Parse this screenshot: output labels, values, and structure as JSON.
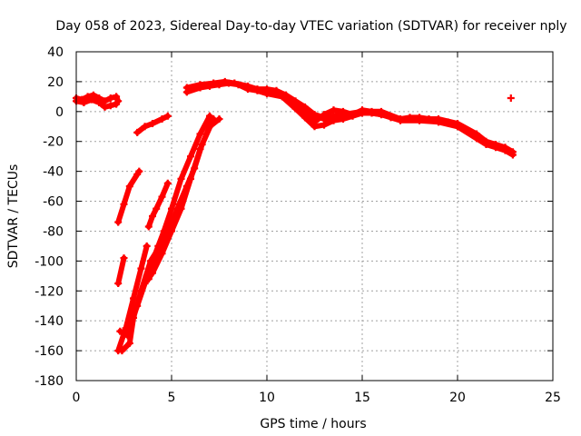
{
  "chart_data": {
    "type": "scatter",
    "title": "Day 058 of 2023, Sidereal Day-to-day VTEC variation (SDTVAR) for receiver nply",
    "xlabel": "GPS time / hours",
    "ylabel": "SDTVAR / TECUs",
    "xlim": [
      0,
      25
    ],
    "ylim": [
      -180,
      40
    ],
    "xticks": [
      0,
      5,
      10,
      15,
      20,
      25
    ],
    "yticks": [
      40,
      20,
      0,
      -20,
      -40,
      -60,
      -80,
      -100,
      -120,
      -140,
      -160,
      -180
    ],
    "grid": true,
    "color": "#ff0000",
    "series": [
      {
        "name": "early-cluster",
        "points": [
          [
            0,
            9
          ],
          [
            0.3,
            8
          ],
          [
            0.6,
            10
          ],
          [
            0.9,
            11
          ],
          [
            1.2,
            9
          ],
          [
            1.5,
            7
          ],
          [
            1.8,
            9
          ],
          [
            2.1,
            10
          ],
          [
            2.2,
            7
          ]
        ]
      },
      {
        "name": "early-cluster-lower",
        "points": [
          [
            0,
            7
          ],
          [
            0.4,
            6
          ],
          [
            0.8,
            8
          ],
          [
            1.2,
            6
          ],
          [
            1.5,
            3
          ],
          [
            1.8,
            4
          ],
          [
            2.1,
            5
          ]
        ]
      },
      {
        "name": "arc-1",
        "points": [
          [
            2.2,
            -74
          ],
          [
            2.5,
            -62
          ],
          [
            2.8,
            -50
          ],
          [
            3.2,
            -42
          ],
          [
            3.3,
            -40
          ]
        ]
      },
      {
        "name": "arc-2",
        "points": [
          [
            3.2,
            -14
          ],
          [
            3.6,
            -10
          ],
          [
            4.0,
            -8
          ],
          [
            4.5,
            -5
          ],
          [
            4.8,
            -3
          ]
        ]
      },
      {
        "name": "arc-3",
        "points": [
          [
            2.2,
            -115
          ],
          [
            2.5,
            -98
          ]
        ]
      },
      {
        "name": "arc-4",
        "points": [
          [
            2.2,
            -160
          ],
          [
            2.6,
            -145
          ],
          [
            3.0,
            -125
          ],
          [
            3.4,
            -105
          ],
          [
            3.7,
            -90
          ]
        ]
      },
      {
        "name": "arc-5",
        "points": [
          [
            2.3,
            -147
          ],
          [
            2.7,
            -150
          ],
          [
            2.9,
            -140
          ],
          [
            3.2,
            -130
          ],
          [
            3.6,
            -115
          ],
          [
            4.0,
            -108
          ],
          [
            4.5,
            -95
          ],
          [
            5.0,
            -80
          ],
          [
            5.5,
            -65
          ],
          [
            6.0,
            -45
          ],
          [
            6.5,
            -25
          ],
          [
            7.0,
            -10
          ],
          [
            7.5,
            -5
          ]
        ]
      },
      {
        "name": "arc-6",
        "points": [
          [
            3.7,
            -110
          ],
          [
            4.0,
            -100
          ],
          [
            4.3,
            -90
          ],
          [
            4.6,
            -80
          ],
          [
            5.0,
            -65
          ],
          [
            5.5,
            -45
          ],
          [
            6.0,
            -30
          ],
          [
            6.5,
            -15
          ],
          [
            7.0,
            -3
          ]
        ]
      },
      {
        "name": "arc-7",
        "points": [
          [
            3.8,
            -112
          ],
          [
            4.2,
            -98
          ],
          [
            4.6,
            -88
          ],
          [
            5.0,
            -75
          ],
          [
            5.4,
            -62
          ],
          [
            5.8,
            -50
          ],
          [
            6.2,
            -38
          ],
          [
            6.6,
            -22
          ],
          [
            7.2,
            -5
          ]
        ]
      },
      {
        "name": "arc-8",
        "points": [
          [
            3.8,
            -77
          ],
          [
            4.0,
            -70
          ],
          [
            4.2,
            -65
          ],
          [
            4.5,
            -57
          ],
          [
            4.8,
            -48
          ]
        ]
      },
      {
        "name": "arc-9",
        "points": [
          [
            2.4,
            -160
          ],
          [
            2.8,
            -155
          ],
          [
            3.0,
            -138
          ],
          [
            3.4,
            -120
          ],
          [
            3.9,
            -100
          ],
          [
            4.4,
            -90
          ]
        ]
      },
      {
        "name": "midday",
        "points": [
          [
            5.8,
            13
          ],
          [
            6.5,
            16
          ],
          [
            7.0,
            17
          ],
          [
            7.5,
            18
          ],
          [
            8.0,
            19
          ],
          [
            8.5,
            18
          ],
          [
            9.0,
            15
          ],
          [
            9.5,
            14
          ],
          [
            10.0,
            13
          ],
          [
            10.5,
            12
          ],
          [
            11.0,
            10
          ],
          [
            11.5,
            5
          ],
          [
            12.0,
            2
          ],
          [
            12.5,
            -3
          ],
          [
            13.0,
            -5
          ],
          [
            13.5,
            -5
          ]
        ]
      },
      {
        "name": "midday-2",
        "points": [
          [
            5.8,
            16
          ],
          [
            6.5,
            18
          ],
          [
            7.2,
            19
          ],
          [
            7.8,
            20
          ],
          [
            8.3,
            19
          ],
          [
            9.0,
            17
          ],
          [
            9.5,
            15
          ],
          [
            10.0,
            15
          ],
          [
            10.5,
            14
          ],
          [
            11.0,
            11
          ],
          [
            11.5,
            7
          ],
          [
            12.0,
            3
          ],
          [
            12.5,
            -2
          ],
          [
            13.0,
            -4
          ],
          [
            13.5,
            -3
          ],
          [
            14.0,
            -2
          ],
          [
            15.0,
            0
          ],
          [
            16.0,
            -2
          ],
          [
            17.0,
            -5
          ],
          [
            18.0,
            -5
          ],
          [
            19.0,
            -5
          ],
          [
            20.0,
            -8
          ],
          [
            21.0,
            -15
          ],
          [
            21.5,
            -20
          ],
          [
            22.0,
            -22
          ],
          [
            22.5,
            -24
          ],
          [
            22.9,
            -27
          ]
        ]
      },
      {
        "name": "midday-3",
        "points": [
          [
            9.0,
            16
          ],
          [
            10.0,
            12
          ],
          [
            10.8,
            10
          ],
          [
            11.5,
            2
          ],
          [
            12.0,
            -4
          ],
          [
            12.5,
            -10
          ],
          [
            13.0,
            -9
          ],
          [
            13.5,
            -6
          ],
          [
            14.0,
            -5
          ],
          [
            14.5,
            -3
          ],
          [
            15.0,
            -1
          ],
          [
            15.5,
            -1
          ],
          [
            16.0,
            -2
          ],
          [
            16.5,
            -4
          ],
          [
            17.0,
            -6
          ],
          [
            18.0,
            -6
          ],
          [
            19.0,
            -7
          ],
          [
            20.0,
            -10
          ],
          [
            21.0,
            -18
          ],
          [
            21.5,
            -22
          ],
          [
            22.0,
            -24
          ],
          [
            22.5,
            -26
          ],
          [
            22.9,
            -29
          ]
        ]
      },
      {
        "name": "midday-4",
        "points": [
          [
            11.0,
            11
          ],
          [
            11.5,
            6
          ],
          [
            12.0,
            0
          ],
          [
            12.5,
            -7
          ],
          [
            13.0,
            -2
          ],
          [
            13.5,
            1
          ],
          [
            14.0,
            0
          ],
          [
            14.5,
            -2
          ],
          [
            15.0,
            1
          ],
          [
            15.5,
            0
          ],
          [
            16.0,
            0
          ],
          [
            17.0,
            -5
          ],
          [
            17.5,
            -4
          ],
          [
            18.0,
            -4
          ],
          [
            18.5,
            -5
          ],
          [
            19.0,
            -6
          ],
          [
            19.5,
            -7
          ],
          [
            20.0,
            -9
          ]
        ]
      },
      {
        "name": "outlier",
        "points": [
          [
            22.8,
            9
          ]
        ]
      }
    ]
  }
}
